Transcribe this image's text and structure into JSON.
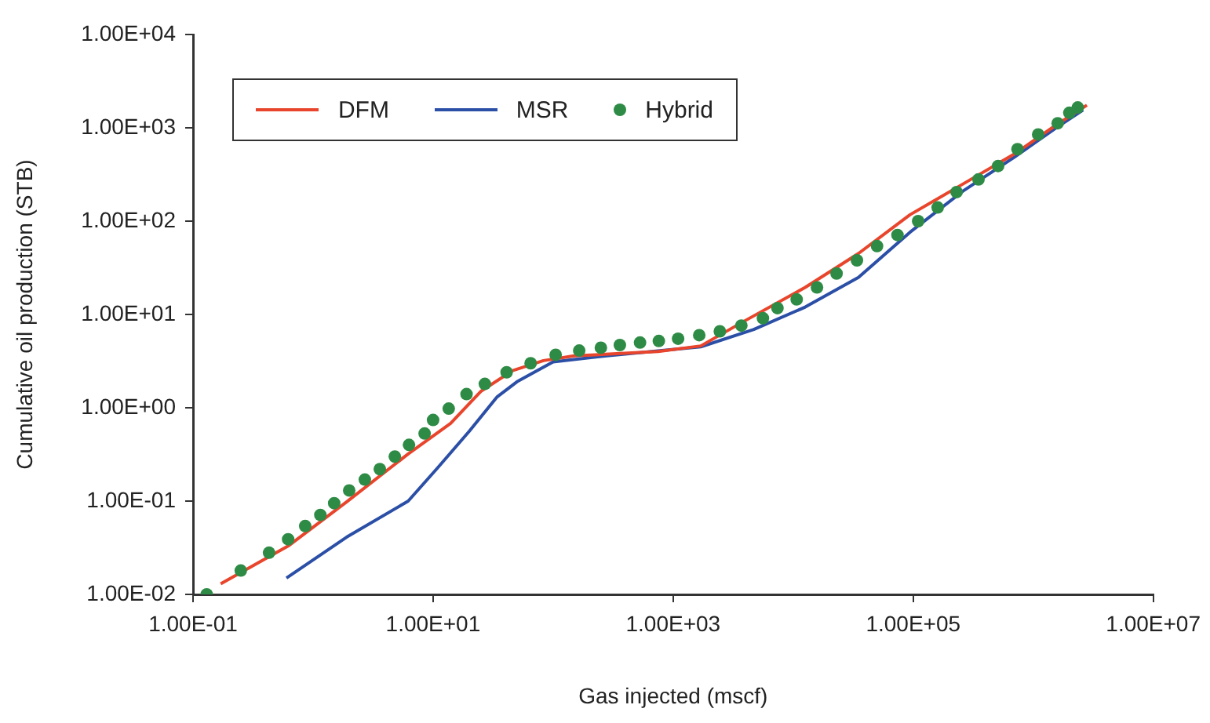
{
  "chart_data": {
    "type": "line",
    "xlabel": "Gas injected (mscf)",
    "ylabel": "Cumulative oil production (STB)",
    "log": "xy",
    "grid": false,
    "legend": "top left",
    "xlim": [
      0.1,
      10000000
    ],
    "ylim": [
      0.01,
      10000
    ],
    "xticks": [
      {
        "value": 0.1,
        "label": "1.00E-01"
      },
      {
        "value": 10,
        "label": "1.00E+01"
      },
      {
        "value": 1000,
        "label": "1.00E+03"
      },
      {
        "value": 100000,
        "label": "1.00E+05"
      },
      {
        "value": 10000000,
        "label": "1.00E+07"
      }
    ],
    "yticks": [
      {
        "value": 0.01,
        "label": "1.00E-02"
      },
      {
        "value": 0.1,
        "label": "1.00E-01"
      },
      {
        "value": 1,
        "label": "1.00E+00"
      },
      {
        "value": 10,
        "label": "1.00E+01"
      },
      {
        "value": 100,
        "label": "1.00E+02"
      },
      {
        "value": 1000,
        "label": "1.00E+03"
      },
      {
        "value": 10000,
        "label": "1.00E+04"
      }
    ],
    "series": [
      {
        "name": "DFM",
        "type": "line",
        "color": "#e8452c",
        "marker": "none",
        "x": [
          0.17,
          0.62,
          1.9,
          6.2,
          14,
          25,
          46,
          83,
          150,
          750,
          1700,
          3800,
          12600,
          35000,
          94000,
          260000,
          690000,
          1550000,
          2800000
        ],
        "values": [
          0.013,
          0.033,
          0.098,
          0.32,
          0.68,
          1.5,
          2.5,
          3.2,
          3.6,
          4.0,
          4.6,
          8.3,
          19.5,
          45,
          117,
          250,
          520,
          1070,
          1750
        ]
      },
      {
        "name": "MSR",
        "type": "line",
        "color": "#2b4fa6",
        "marker": "none",
        "x": [
          0.6,
          1.9,
          6.2,
          11,
          20,
          34,
          50,
          100,
          280,
          1700,
          4700,
          12600,
          35000,
          94000,
          260000,
          690000,
          1550000,
          2600000
        ],
        "values": [
          0.015,
          0.041,
          0.1,
          0.23,
          0.56,
          1.3,
          1.9,
          3.1,
          3.6,
          4.5,
          6.9,
          12,
          25,
          76,
          210,
          480,
          1000,
          1550
        ]
      },
      {
        "name": "Hybrid",
        "type": "scatter",
        "color": "#2e8b45",
        "marker": "circle",
        "x": [
          0.13,
          0.25,
          0.43,
          0.62,
          0.86,
          1.15,
          1.5,
          2.0,
          2.7,
          3.6,
          4.8,
          6.3,
          8.5,
          10,
          13.5,
          19,
          27,
          41,
          65,
          105,
          165,
          250,
          360,
          530,
          760,
          1100,
          1650,
          2450,
          3700,
          5600,
          7400,
          10700,
          15800,
          23000,
          34000,
          50000,
          74000,
          110000,
          160000,
          230000,
          350000,
          510000,
          740000,
          1100000,
          1600000,
          2000000,
          2350000
        ],
        "values": [
          0.01,
          0.018,
          0.028,
          0.039,
          0.054,
          0.071,
          0.095,
          0.13,
          0.17,
          0.22,
          0.3,
          0.4,
          0.53,
          0.74,
          0.98,
          1.4,
          1.8,
          2.4,
          3.0,
          3.7,
          4.1,
          4.4,
          4.7,
          5.0,
          5.2,
          5.5,
          6.0,
          6.6,
          7.6,
          9.1,
          11.7,
          14.5,
          19.5,
          27.5,
          38,
          54,
          71,
          100,
          140,
          205,
          280,
          390,
          590,
          850,
          1120,
          1450,
          1650
        ]
      }
    ]
  }
}
